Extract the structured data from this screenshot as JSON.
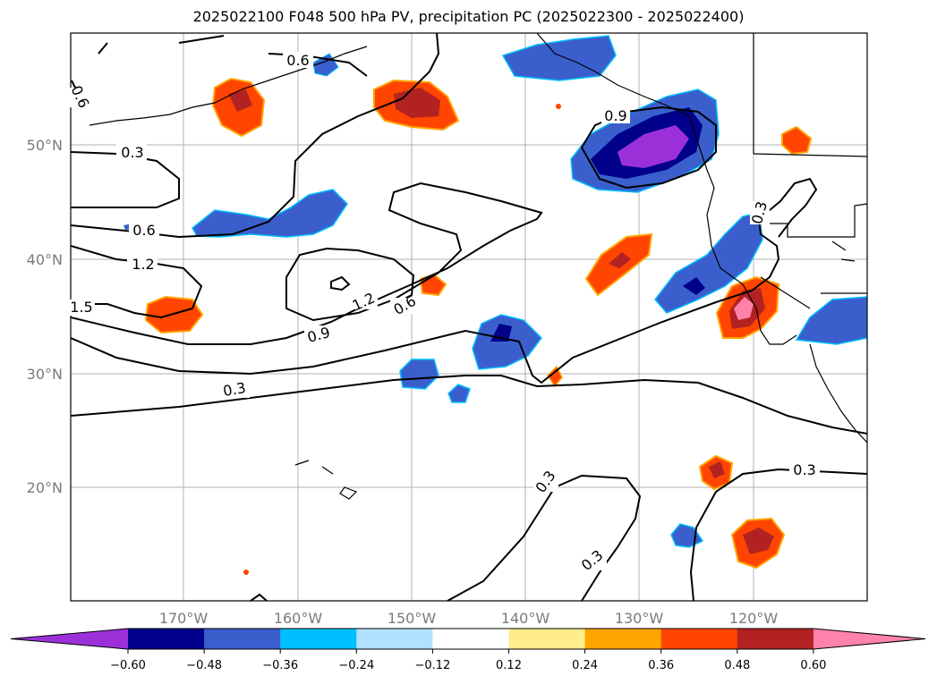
{
  "title": "2025022100 F048 500 hPa PV, precipitation PC (2025022300 - 2025022400)",
  "map": {
    "lat_labels": [
      "50°N",
      "40°N",
      "30°N",
      "20°N"
    ],
    "lon_labels": [
      "170°W",
      "160°W",
      "150°W",
      "140°W",
      "130°W",
      "120°W"
    ],
    "contour_labels": [
      "0.6",
      "0.6",
      "0.3",
      "0.6",
      "1.2",
      "1.5",
      "0.9",
      "1.2",
      "0.6",
      "0.3",
      "0.9",
      "0.3",
      "0.3",
      "0.3",
      "0.3"
    ],
    "gridlines": true
  },
  "colorbar": {
    "ticks": [
      "−0.60",
      "−0.48",
      "−0.36",
      "−0.24",
      "−0.12",
      "0.12",
      "0.24",
      "0.36",
      "0.48",
      "0.60"
    ],
    "colors": [
      "#9b30d9",
      "#00008b",
      "#3a5fcd",
      "#00bfff",
      "#b0e2ff",
      "#ffffff",
      "#ffec8b",
      "#ffa500",
      "#ff4500",
      "#b22222",
      "#ff82ab"
    ]
  }
}
